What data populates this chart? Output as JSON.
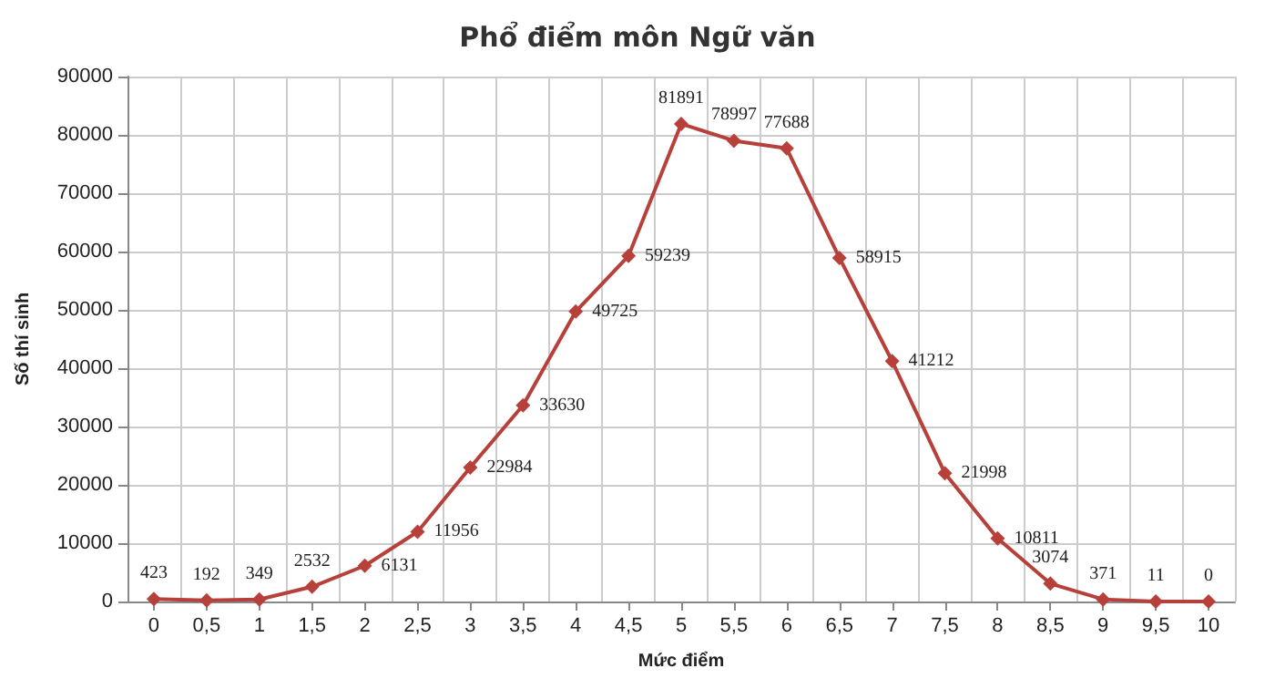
{
  "chart_data": {
    "type": "line",
    "title": "Phổ điểm môn Ngữ văn",
    "xlabel": "Mức điểm",
    "ylabel": "Số thí sinh",
    "categories": [
      "0",
      "0,5",
      "1",
      "1,5",
      "2",
      "2,5",
      "3",
      "3,5",
      "4",
      "4,5",
      "5",
      "5,5",
      "6",
      "6,5",
      "7",
      "7,5",
      "8",
      "8,5",
      "9",
      "9,5",
      "10"
    ],
    "series": [
      {
        "color": "#b8403a",
        "values": [
          423,
          192,
          349,
          2532,
          6131,
          11956,
          22984,
          33630,
          49725,
          59239,
          81891,
          78997,
          77688,
          58915,
          41212,
          21998,
          10811,
          3074,
          371,
          11,
          0
        ]
      }
    ],
    "ylim": [
      0,
      90000
    ],
    "yticks": [
      0,
      10000,
      20000,
      30000,
      40000,
      50000,
      60000,
      70000,
      80000,
      90000
    ],
    "grid": true,
    "marker": "diamond",
    "line_style": "solid",
    "data_labels": true
  }
}
